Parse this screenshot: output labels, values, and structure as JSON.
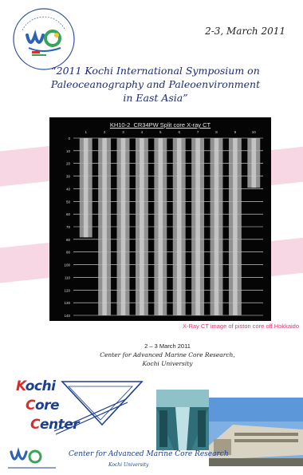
{
  "header": {
    "date": "2-3, March 2011",
    "title_line1": "“2011 Kochi International Symposium on",
    "title_line2": "Paleoceanography and Paleoenvironment",
    "title_line3": "in East Asia”"
  },
  "xray_panel": {
    "title": "KH10-2_CR34PW Split core X-ray CT",
    "column_labels": [
      "1",
      "2",
      "3",
      "4",
      "5",
      "6",
      "7",
      "8",
      "9",
      "10"
    ],
    "depth_labels": [
      "0",
      "10",
      "20",
      "30",
      "40",
      "50",
      "60",
      "70",
      "80",
      "90",
      "100",
      "110",
      "120",
      "130",
      "140"
    ],
    "caption": "X-Ray CT image of piston core off Hokkaido"
  },
  "event_info": {
    "dates": "2 – 3 March 2011",
    "venue": "Center for Advanced Marine Core Research,",
    "university": "Kochi University"
  },
  "kochi_core_center": {
    "word1_first": "K",
    "word1_rest": "ochi",
    "word2_first": "C",
    "word2_rest": "ore",
    "word3_first": "C",
    "word3_rest": "enter"
  },
  "footer": {
    "center_name": "Center for Advanced Marine Core Research",
    "university": "Kochi University"
  },
  "colors": {
    "title_blue": "#1e2b73",
    "caption_pink": "#e0356f",
    "band_pink": "#f6d7e3",
    "logo_red": "#d62e2a",
    "logo_blue": "#1d3f8e"
  }
}
